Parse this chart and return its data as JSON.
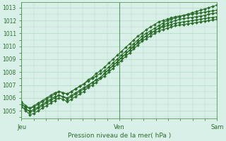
{
  "title": "",
  "xlabel": "Pression niveau de la mer( hPa )",
  "ylabel": "",
  "background_color": "#d8f0e8",
  "grid_color": "#b0d8c0",
  "line_color": "#2d6e2d",
  "xlim": [
    0,
    48
  ],
  "ylim": [
    1004.4,
    1013.4
  ],
  "yticks": [
    1005,
    1006,
    1007,
    1008,
    1009,
    1010,
    1011,
    1012,
    1013
  ],
  "xtick_labels": [
    "Jeu",
    "Ven",
    "Sam"
  ],
  "xtick_positions": [
    0,
    24,
    48
  ],
  "series": [
    [
      1005.5,
      1005.3,
      1005.2,
      1005.4,
      1005.6,
      1005.8,
      1006.0,
      1006.2,
      1006.4,
      1006.5,
      1006.4,
      1006.3,
      1006.5,
      1006.7,
      1006.9,
      1007.1,
      1007.3,
      1007.5,
      1007.7,
      1007.9,
      1008.1,
      1008.4,
      1008.7,
      1009.0,
      1009.3,
      1009.6,
      1009.9,
      1010.2,
      1010.5,
      1010.8,
      1011.0,
      1011.2,
      1011.4,
      1011.6,
      1011.8,
      1012.0,
      1012.1,
      1012.2,
      1012.3,
      1012.4,
      1012.5,
      1012.6,
      1012.7,
      1012.8,
      1012.9,
      1013.0,
      1013.1,
      1013.2
    ],
    [
      1005.3,
      1005.1,
      1005.0,
      1005.1,
      1005.3,
      1005.5,
      1005.7,
      1005.9,
      1006.1,
      1006.2,
      1006.1,
      1006.0,
      1006.2,
      1006.4,
      1006.6,
      1006.8,
      1007.0,
      1007.2,
      1007.4,
      1007.6,
      1007.9,
      1008.2,
      1008.5,
      1008.8,
      1009.1,
      1009.4,
      1009.7,
      1010.0,
      1010.3,
      1010.6,
      1010.8,
      1011.0,
      1011.2,
      1011.4,
      1011.6,
      1011.8,
      1011.9,
      1012.0,
      1012.1,
      1012.15,
      1012.2,
      1012.25,
      1012.3,
      1012.35,
      1012.4,
      1012.5,
      1012.55,
      1012.6
    ],
    [
      1005.6,
      1005.2,
      1004.9,
      1005.0,
      1005.2,
      1005.4,
      1005.6,
      1005.8,
      1006.0,
      1006.2,
      1006.1,
      1005.9,
      1006.1,
      1006.3,
      1006.5,
      1006.7,
      1006.9,
      1007.2,
      1007.4,
      1007.6,
      1007.9,
      1008.2,
      1008.5,
      1008.8,
      1009.1,
      1009.4,
      1009.7,
      1010.0,
      1010.3,
      1010.6,
      1010.8,
      1011.0,
      1011.2,
      1011.4,
      1011.5,
      1011.6,
      1011.7,
      1011.8,
      1011.85,
      1011.9,
      1011.95,
      1012.0,
      1012.05,
      1012.1,
      1012.15,
      1012.2,
      1012.25,
      1012.3
    ],
    [
      1005.7,
      1005.4,
      1005.2,
      1005.3,
      1005.5,
      1005.7,
      1005.9,
      1006.1,
      1006.3,
      1006.5,
      1006.4,
      1006.3,
      1006.5,
      1006.7,
      1006.9,
      1007.1,
      1007.4,
      1007.6,
      1007.9,
      1008.1,
      1008.4,
      1008.7,
      1009.0,
      1009.3,
      1009.6,
      1009.9,
      1010.2,
      1010.5,
      1010.8,
      1011.0,
      1011.3,
      1011.5,
      1011.7,
      1011.9,
      1012.0,
      1012.1,
      1012.2,
      1012.3,
      1012.35,
      1012.4,
      1012.45,
      1012.5,
      1012.55,
      1012.6,
      1012.65,
      1012.7,
      1012.75,
      1012.8
    ],
    [
      1005.4,
      1005.0,
      1004.7,
      1004.8,
      1005.0,
      1005.2,
      1005.4,
      1005.6,
      1005.8,
      1006.0,
      1005.9,
      1005.7,
      1005.9,
      1006.1,
      1006.3,
      1006.5,
      1006.8,
      1007.0,
      1007.2,
      1007.5,
      1007.7,
      1008.0,
      1008.3,
      1008.6,
      1008.9,
      1009.2,
      1009.5,
      1009.8,
      1010.1,
      1010.4,
      1010.6,
      1010.8,
      1011.0,
      1011.2,
      1011.3,
      1011.4,
      1011.5,
      1011.6,
      1011.65,
      1011.7,
      1011.75,
      1011.8,
      1011.85,
      1011.9,
      1011.95,
      1012.0,
      1012.05,
      1012.1
    ]
  ],
  "marker": "D",
  "markersize": 2.0,
  "linewidth": 0.8
}
